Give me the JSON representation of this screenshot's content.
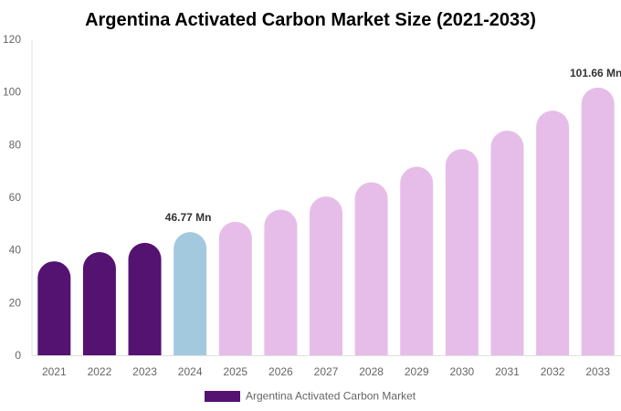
{
  "chart_data": {
    "type": "bar",
    "title": "Argentina Activated Carbon Market Size (2021-2033)",
    "categories": [
      "2021",
      "2022",
      "2023",
      "2024",
      "2025",
      "2026",
      "2027",
      "2028",
      "2029",
      "2030",
      "2031",
      "2032",
      "2033"
    ],
    "series": [
      {
        "name": "Argentina Activated Carbon Market",
        "values": [
          35.7,
          39.2,
          42.7,
          46.77,
          50.7,
          55.3,
          60.3,
          65.7,
          71.6,
          78.3,
          85.3,
          92.9,
          101.66
        ]
      }
    ],
    "bar_colors": [
      "#541271",
      "#541271",
      "#541271",
      "#a3c9de",
      "#e6bde8",
      "#e6bde8",
      "#e6bde8",
      "#e6bde8",
      "#e6bde8",
      "#e6bde8",
      "#e6bde8",
      "#e6bde8",
      "#e6bde8"
    ],
    "legend_color": "#541271",
    "data_labels": [
      {
        "category": "2024",
        "text": "46.77 Mn"
      },
      {
        "category": "2033",
        "text": "101.66 Mn"
      }
    ],
    "yticks": [
      "0",
      "20",
      "40",
      "60",
      "80",
      "100",
      "120"
    ],
    "ylim": [
      0,
      120
    ],
    "xlabel": "",
    "ylabel": "",
    "grid": false,
    "legend_position": "bottom"
  }
}
